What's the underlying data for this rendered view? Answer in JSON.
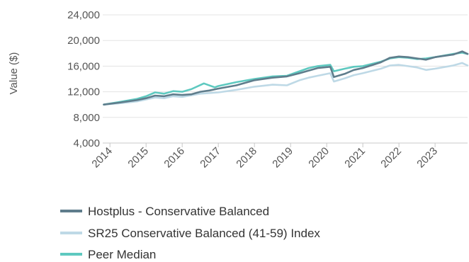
{
  "chart_data": {
    "type": "line",
    "title": "",
    "xlabel": "",
    "ylabel": "Value ($)",
    "ylim": [
      4000,
      24000
    ],
    "yticks": [
      4000,
      8000,
      12000,
      16000,
      20000,
      24000
    ],
    "ytick_labels": [
      "4,000",
      "8,000",
      "12,000",
      "16,000",
      "20,000",
      "24,000"
    ],
    "xlim": [
      2013.8,
      2023.9
    ],
    "xticks": [
      2014,
      2015,
      2016,
      2017,
      2018,
      2019,
      2020,
      2021,
      2022,
      2023
    ],
    "xtick_labels": [
      "2014",
      "2015",
      "2016",
      "2017",
      "2018",
      "2019",
      "2020",
      "2021",
      "2022",
      "2023"
    ],
    "grid": "horizontal",
    "legend_position": "bottom",
    "series": [
      {
        "name": "Hostplus - Conservative Balanced",
        "color": "#5f7d8c",
        "x": [
          2013.83,
          2014.25,
          2014.75,
          2015.0,
          2015.25,
          2015.5,
          2015.75,
          2016.0,
          2016.25,
          2016.5,
          2016.75,
          2017.0,
          2017.5,
          2018.0,
          2018.5,
          2018.9,
          2019.25,
          2019.5,
          2019.75,
          2020.1,
          2020.2,
          2020.5,
          2020.75,
          2021.0,
          2021.5,
          2021.75,
          2022.0,
          2022.25,
          2022.5,
          2022.75,
          2023.0,
          2023.5,
          2023.75,
          2023.9
        ],
        "y": [
          10000,
          10300,
          10700,
          11000,
          11400,
          11300,
          11600,
          11500,
          11600,
          12000,
          12200,
          12500,
          13000,
          13800,
          14200,
          14400,
          14900,
          15300,
          15700,
          15900,
          14300,
          14800,
          15400,
          15700,
          16600,
          17300,
          17500,
          17400,
          17200,
          17000,
          17400,
          17800,
          18300,
          17900
        ]
      },
      {
        "name": "SR25 Conservative Balanced (41-59) Index",
        "color": "#bed9e6",
        "x": [
          2013.83,
          2014.25,
          2014.75,
          2015.0,
          2015.25,
          2015.5,
          2015.75,
          2016.0,
          2016.5,
          2017.0,
          2017.5,
          2018.0,
          2018.5,
          2018.9,
          2019.25,
          2019.5,
          2019.75,
          2020.1,
          2020.2,
          2020.5,
          2020.75,
          2021.0,
          2021.5,
          2021.75,
          2022.0,
          2022.25,
          2022.5,
          2022.75,
          2023.0,
          2023.5,
          2023.75,
          2023.9
        ],
        "y": [
          10000,
          10200,
          10500,
          10800,
          11100,
          11000,
          11300,
          11200,
          11700,
          11900,
          12300,
          12800,
          13100,
          13000,
          13800,
          14200,
          14500,
          14900,
          13600,
          14100,
          14600,
          14900,
          15600,
          16100,
          16200,
          16000,
          15800,
          15400,
          15600,
          16100,
          16500,
          16100
        ]
      },
      {
        "name": "Peer Median",
        "color": "#5ec9c0",
        "x": [
          2013.83,
          2014.25,
          2014.75,
          2015.0,
          2015.25,
          2015.5,
          2015.75,
          2016.0,
          2016.25,
          2016.6,
          2016.9,
          2017.0,
          2017.5,
          2018.0,
          2018.5,
          2018.9,
          2019.25,
          2019.5,
          2019.75,
          2020.1,
          2020.2,
          2020.5,
          2020.75,
          2021.0,
          2021.5,
          2021.75,
          2022.0,
          2022.25,
          2022.5,
          2022.75,
          2023.0,
          2023.5,
          2023.75,
          2023.9
        ],
        "y": [
          10000,
          10400,
          10900,
          11300,
          11900,
          11700,
          12100,
          12000,
          12400,
          13300,
          12700,
          12900,
          13500,
          14000,
          14400,
          14500,
          15200,
          15700,
          16000,
          16200,
          15200,
          15600,
          15900,
          16000,
          16700,
          17200,
          17400,
          17300,
          17100,
          17200,
          17400,
          17900,
          18100,
          17900
        ]
      }
    ]
  }
}
